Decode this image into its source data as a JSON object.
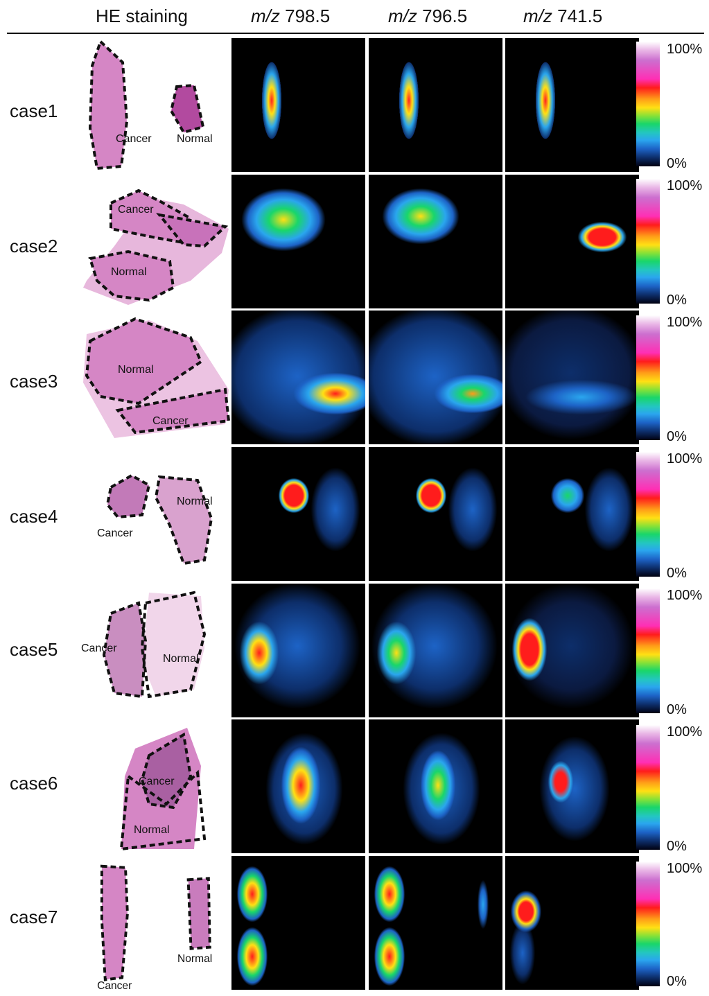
{
  "header": {
    "he_label": "HE staining",
    "ions": [
      {
        "prefix": "m/z",
        "value": "798.5"
      },
      {
        "prefix": "m/z",
        "value": "796.5"
      },
      {
        "prefix": "m/z",
        "value": "741.5"
      }
    ]
  },
  "colorbar": {
    "max_label": "100%",
    "min_label": "0%"
  },
  "colors": {
    "tissue": "#d586c5",
    "tissue_dark": "#a94b9c",
    "background": "#000000"
  },
  "rows": [
    {
      "label": "case1",
      "he_tags": [
        "Cancer",
        "Normal"
      ]
    },
    {
      "label": "case2",
      "he_tags": [
        "Cancer",
        "Normal"
      ]
    },
    {
      "label": "case3",
      "he_tags": [
        "Normal",
        "Cancer"
      ]
    },
    {
      "label": "case4",
      "he_tags": [
        "Normal",
        "Cancer"
      ]
    },
    {
      "label": "case5",
      "he_tags": [
        "Cancer",
        "Normal"
      ]
    },
    {
      "label": "case6",
      "he_tags": [
        "Cancer",
        "Normal"
      ]
    },
    {
      "label": "case7",
      "he_tags": [
        "Normal",
        "Cancer"
      ]
    }
  ]
}
